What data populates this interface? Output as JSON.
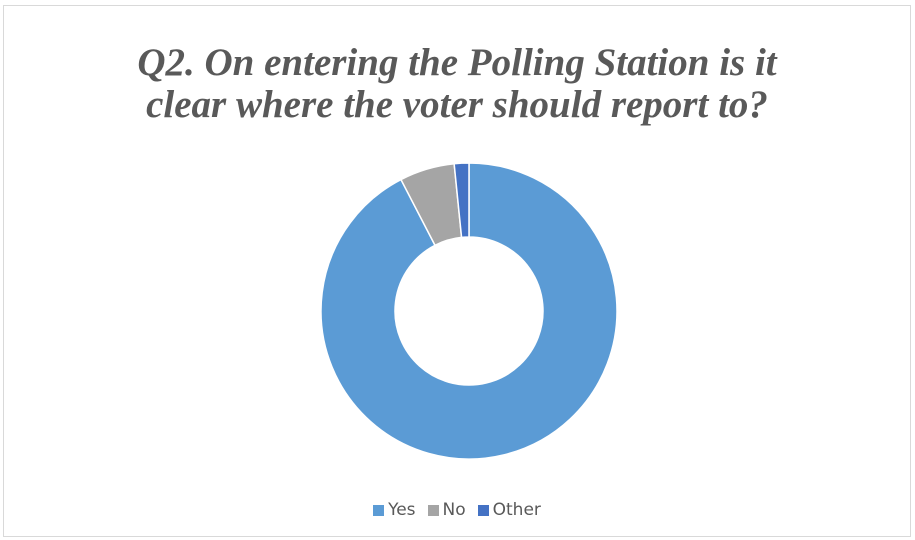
{
  "chart_data": {
    "type": "pie",
    "variant": "doughnut",
    "title_lines": [
      "Q2. On entering the Polling Station is it",
      "clear where the voter should report to?"
    ],
    "categories": [
      "Yes",
      "No",
      "Other"
    ],
    "values": [
      92.4,
      6.0,
      1.6
    ],
    "colors": [
      "#5B9BD5",
      "#A5A5A5",
      "#4472C4"
    ],
    "legend_position": "bottom"
  }
}
